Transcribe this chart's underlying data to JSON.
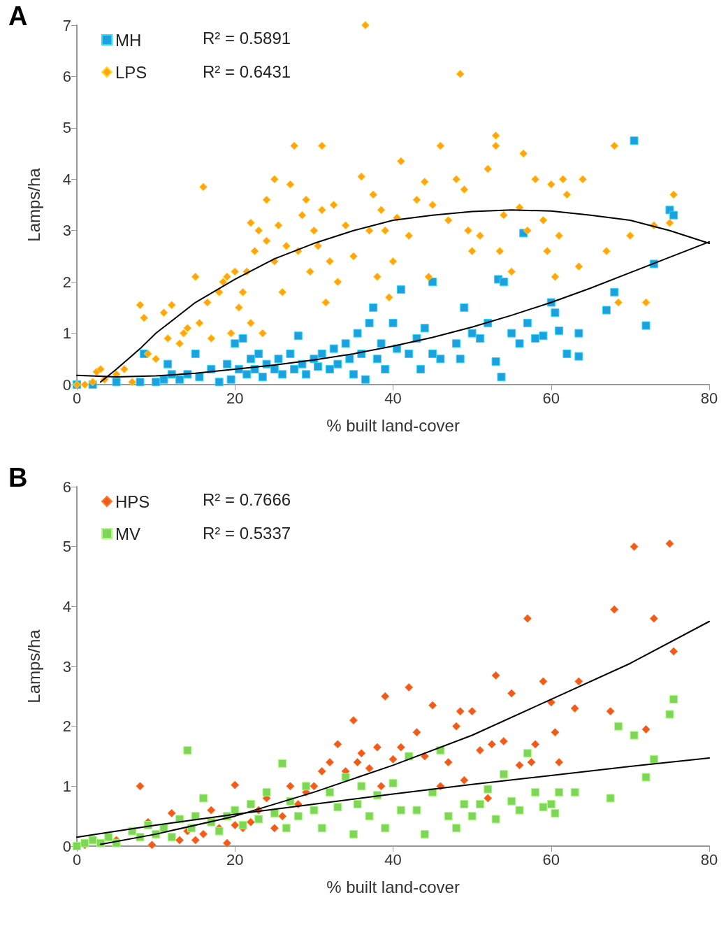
{
  "chart_data": [
    {
      "type": "scatter",
      "xlabel": "% built land-cover",
      "ylabel": "Lamps/ha",
      "annotations": [
        "A",
        "R² = 0.5891",
        "R² = 0.6431"
      ],
      "xlim": [
        0,
        80
      ],
      "xticks": [
        0,
        20,
        40,
        60,
        80
      ],
      "ylim": [
        0,
        7
      ],
      "yticks": [
        0,
        1,
        2,
        3,
        4,
        5,
        6,
        7
      ],
      "grid": false,
      "legend": "top left",
      "series": [
        {
          "name": "MH",
          "color": "#1ea0dc",
          "marker": "square",
          "x": [
            0,
            2,
            5,
            8,
            8.5,
            10,
            11,
            11.5,
            12,
            13,
            14,
            15,
            15.5,
            17,
            18,
            19,
            19.5,
            20,
            20.5,
            21,
            21.5,
            22,
            22.5,
            23,
            23.5,
            24,
            25,
            25.5,
            26,
            27,
            27.5,
            28,
            28.5,
            29,
            30,
            30.5,
            31,
            32,
            32.5,
            33,
            34,
            34.5,
            35,
            35.5,
            36,
            36.5,
            37,
            37.5,
            38,
            38.5,
            39,
            40,
            40.5,
            41,
            42,
            43,
            43.5,
            44,
            45,
            45,
            46,
            48,
            48.5,
            49,
            50,
            51,
            52,
            53,
            53.3,
            53.7,
            54,
            55,
            56,
            56.5,
            57,
            58,
            59,
            60,
            60.5,
            61,
            62,
            63.5,
            63.5,
            67,
            68,
            70.5,
            72,
            73,
            75,
            75.5
          ],
          "values": [
            0,
            0,
            0.05,
            0.05,
            0.6,
            0.05,
            0.1,
            0.4,
            0.2,
            0.1,
            0.2,
            0.6,
            0.15,
            0.3,
            0.05,
            0.4,
            0.1,
            0.8,
            0.3,
            0.9,
            0.2,
            0.5,
            0.3,
            0.6,
            0.15,
            0.4,
            0.3,
            0.5,
            0.2,
            0.6,
            0.3,
            0.95,
            0.4,
            0.2,
            0.5,
            0.35,
            0.6,
            0.3,
            0.7,
            0.4,
            0.8,
            0.5,
            0.2,
            1.0,
            0.6,
            0.1,
            1.2,
            1.5,
            0.5,
            0.8,
            0.3,
            1.2,
            0.7,
            1.85,
            0.6,
            0.9,
            0.3,
            1.1,
            2.0,
            0.6,
            0.5,
            0.8,
            0.5,
            1.5,
            1.0,
            0.9,
            1.2,
            0.45,
            2.05,
            0.15,
            2.0,
            1.0,
            0.8,
            2.95,
            1.2,
            0.9,
            0.95,
            1.6,
            1.4,
            1.05,
            0.6,
            1.0,
            0.55,
            1.45,
            1.8,
            4.75,
            1.15,
            2.35,
            3.4,
            3.3
          ]
        },
        {
          "name": "LPS",
          "color": "#ffa31a",
          "marker": "diamond",
          "x": [
            0,
            1,
            2,
            2.5,
            3,
            3.5,
            5,
            6,
            7,
            8,
            8.5,
            9,
            10,
            11,
            11.5,
            12,
            13,
            13.5,
            14,
            15,
            15.5,
            16,
            16.5,
            17,
            18,
            18.5,
            19,
            19.5,
            20,
            20.5,
            21,
            21.5,
            22,
            22,
            22.5,
            23,
            23.5,
            24,
            24,
            25,
            25,
            25.5,
            26,
            26.5,
            27,
            27.5,
            28,
            28.5,
            29,
            29.5,
            30,
            30.5,
            31,
            31,
            31.5,
            32,
            32.5,
            33,
            34,
            35,
            36,
            36.5,
            37,
            37.5,
            38,
            38.5,
            39,
            39.5,
            40,
            40.5,
            41,
            42,
            43,
            44,
            44.5,
            45,
            46,
            47,
            48,
            48.5,
            49,
            49.5,
            50,
            51,
            52,
            53,
            53,
            53.5,
            54,
            55,
            56,
            56.5,
            57,
            58,
            59,
            59.5,
            60,
            60.5,
            61,
            61.5,
            62,
            63.5,
            64,
            67,
            68,
            68.5,
            70,
            72,
            73,
            75,
            75.5
          ],
          "values": [
            0,
            0,
            0.05,
            0.25,
            0.3,
            0.1,
            0.2,
            0.3,
            0.05,
            1.55,
            1.3,
            0.6,
            0.5,
            1.4,
            0.9,
            1.55,
            0.8,
            1.0,
            1.1,
            2.1,
            1.2,
            3.85,
            1.6,
            0.9,
            1.8,
            2.0,
            2.1,
            1.0,
            2.2,
            1.5,
            1.8,
            2.2,
            3.15,
            1.2,
            2.6,
            3.0,
            1.0,
            3.6,
            2.8,
            4.0,
            2.4,
            3.1,
            1.8,
            2.7,
            3.9,
            4.65,
            2.6,
            3.3,
            3.6,
            2.2,
            3.0,
            2.7,
            4.65,
            3.4,
            1.6,
            2.4,
            3.5,
            2.0,
            3.1,
            2.5,
            4.05,
            7.0,
            3.0,
            3.7,
            2.1,
            3.4,
            3.0,
            1.7,
            2.4,
            3.25,
            4.35,
            2.9,
            3.6,
            3.95,
            2.1,
            3.5,
            4.65,
            3.2,
            4.0,
            6.05,
            3.8,
            3.0,
            2.6,
            2.9,
            4.2,
            4.65,
            4.85,
            2.6,
            3.3,
            2.2,
            3.45,
            4.5,
            3.0,
            4.0,
            3.2,
            2.6,
            3.9,
            2.1,
            2.9,
            4.0,
            3.7,
            2.3,
            4.0,
            2.6,
            4.65,
            1.6,
            2.9,
            1.6,
            3.1,
            3.15,
            3.7
          ]
        },
        {
          "type": "line",
          "color": "#000000",
          "marker": "none",
          "x": [
            0,
            5,
            10,
            15,
            20,
            25,
            30,
            35,
            40,
            45,
            50,
            55,
            60,
            65,
            70,
            75,
            80
          ],
          "values": [
            0.18,
            0.15,
            0.17,
            0.22,
            0.3,
            0.38,
            0.48,
            0.6,
            0.75,
            0.92,
            1.12,
            1.35,
            1.6,
            1.88,
            2.18,
            2.48,
            2.78
          ]
        },
        {
          "type": "line",
          "color": "#000000",
          "marker": "none",
          "x": [
            3,
            5,
            8,
            10,
            15,
            20,
            25,
            30,
            35,
            40,
            45,
            50,
            55,
            60,
            65,
            70,
            75,
            80
          ],
          "values": [
            0.05,
            0.3,
            0.7,
            1.0,
            1.6,
            2.05,
            2.45,
            2.75,
            3.0,
            3.2,
            3.3,
            3.37,
            3.4,
            3.38,
            3.3,
            3.2,
            3.0,
            2.75
          ]
        }
      ]
    },
    {
      "type": "scatter",
      "xlabel": "% built land-cover",
      "ylabel": "Lamps/ha",
      "annotations": [
        "B",
        "R² = 0.7666",
        "R² = 0.5337"
      ],
      "xlim": [
        0,
        80
      ],
      "xticks": [
        0,
        20,
        40,
        60,
        80
      ],
      "ylim": [
        0,
        6
      ],
      "yticks": [
        0,
        1,
        2,
        3,
        4,
        5,
        6
      ],
      "grid": false,
      "legend": "top left",
      "series": [
        {
          "name": "HPS",
          "color": "#f05a1e",
          "marker": "diamond",
          "x": [
            1,
            5,
            8,
            9,
            9.5,
            12,
            13,
            14,
            15,
            16,
            17,
            18,
            19,
            20,
            20,
            21,
            22,
            23,
            24,
            25,
            26,
            27,
            28,
            29,
            30,
            31,
            32,
            33,
            34,
            35,
            35.5,
            36,
            37,
            38,
            38.5,
            39,
            40,
            41,
            42,
            43,
            44,
            45,
            46,
            47,
            48,
            48.5,
            49,
            50,
            51,
            52,
            52.5,
            53,
            54,
            55,
            56,
            57,
            57.5,
            58,
            59,
            60,
            60.5,
            61,
            63,
            63.5,
            67.5,
            68,
            70.5,
            72,
            73,
            75,
            75.5
          ],
          "values": [
            0.02,
            0.1,
            1.0,
            0.4,
            0.02,
            0.55,
            0.1,
            0.25,
            0.1,
            0.2,
            0.6,
            0.3,
            0.05,
            0.35,
            1.02,
            0.3,
            0.4,
            0.6,
            0.8,
            0.3,
            0.5,
            1.0,
            0.7,
            0.9,
            1.0,
            1.25,
            1.4,
            1.7,
            1.25,
            2.1,
            1.4,
            1.55,
            1.3,
            1.65,
            1.0,
            2.5,
            1.45,
            1.65,
            2.65,
            1.9,
            1.5,
            2.35,
            1.0,
            1.4,
            2.0,
            2.25,
            1.1,
            2.25,
            1.6,
            0.8,
            1.7,
            2.85,
            1.75,
            2.55,
            1.35,
            3.8,
            1.4,
            1.7,
            2.75,
            2.4,
            1.9,
            1.4,
            2.3,
            2.75,
            2.25,
            3.95,
            5.0,
            1.95,
            3.8,
            5.05,
            3.25
          ]
        },
        {
          "name": "MV",
          "color": "#7fd45a",
          "marker": "square",
          "x": [
            0,
            1,
            2,
            3,
            4,
            5,
            7,
            8,
            9,
            10,
            11,
            12,
            13,
            14,
            14.5,
            15,
            16,
            17,
            18,
            19,
            20,
            21,
            22,
            23,
            24,
            25,
            26,
            26.5,
            27,
            28,
            29,
            30,
            31,
            32,
            33,
            34,
            35,
            35.5,
            36,
            37,
            38,
            39,
            40,
            41,
            42,
            43,
            44,
            45,
            46,
            47,
            48,
            49,
            50,
            51,
            52,
            53,
            54,
            55,
            56,
            57,
            58,
            59,
            60,
            60.5,
            61,
            63,
            67.5,
            68.5,
            70.5,
            72,
            73,
            75,
            75.5
          ],
          "values": [
            0,
            0.05,
            0.1,
            0.05,
            0.15,
            0.05,
            0.25,
            0.15,
            0.35,
            0.2,
            0.3,
            0.15,
            0.45,
            1.6,
            0.3,
            0.5,
            0.8,
            0.4,
            0.25,
            0.5,
            0.6,
            0.35,
            0.7,
            0.45,
            0.9,
            0.55,
            1.38,
            0.3,
            0.75,
            0.5,
            1.0,
            0.6,
            0.3,
            0.9,
            0.65,
            1.15,
            0.2,
            0.7,
            1.0,
            0.5,
            0.85,
            0.3,
            1.05,
            0.6,
            1.5,
            0.6,
            0.2,
            0.9,
            1.6,
            0.5,
            0.3,
            0.7,
            0.5,
            0.7,
            0.95,
            0.45,
            1.2,
            0.75,
            0.6,
            1.55,
            0.9,
            0.65,
            0.7,
            0.55,
            0.9,
            0.9,
            0.8,
            2.0,
            1.85,
            1.15,
            1.45,
            2.2,
            2.45
          ]
        },
        {
          "type": "line",
          "color": "#000000",
          "marker": "none",
          "x": [
            3,
            10,
            20,
            30,
            40,
            50,
            60,
            70,
            80
          ],
          "values": [
            0.03,
            0.2,
            0.5,
            0.9,
            1.35,
            1.85,
            2.45,
            3.05,
            3.75
          ]
        },
        {
          "type": "line",
          "color": "#000000",
          "marker": "none",
          "x": [
            0,
            10,
            20,
            30,
            40,
            50,
            60,
            70,
            80
          ],
          "values": [
            0.15,
            0.35,
            0.53,
            0.7,
            0.87,
            1.03,
            1.18,
            1.33,
            1.47
          ]
        }
      ]
    }
  ]
}
